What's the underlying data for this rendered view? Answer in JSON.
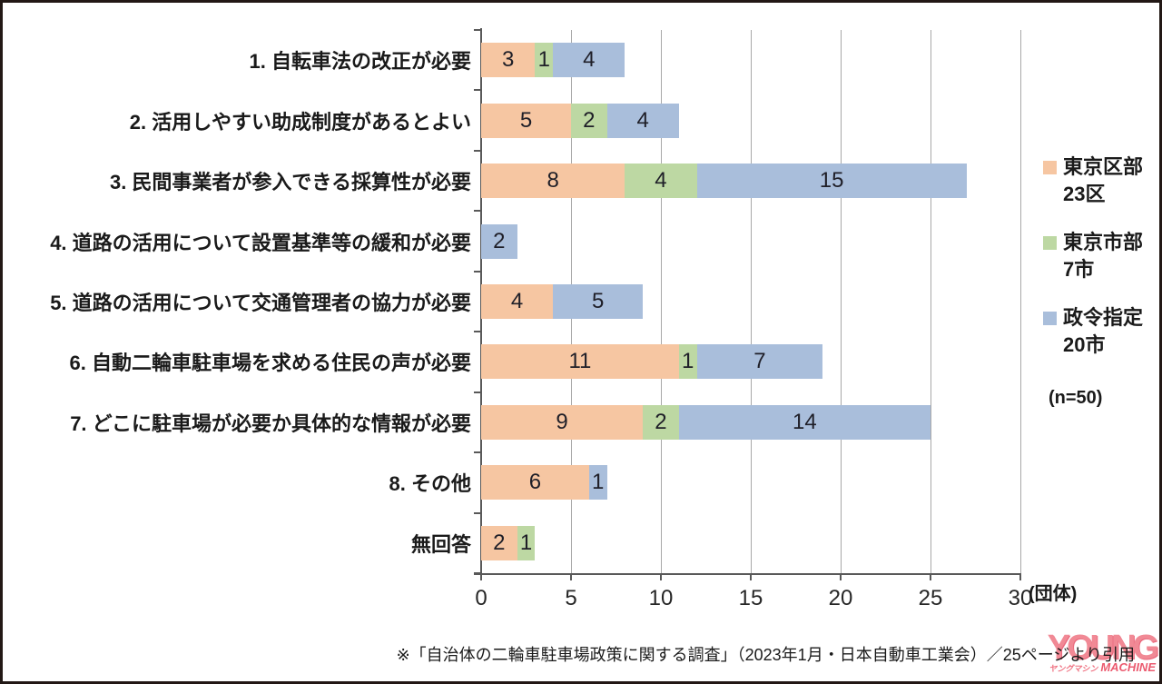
{
  "chart_data": {
    "type": "bar",
    "orientation": "horizontal",
    "stacked": true,
    "title": "",
    "xlabel": "",
    "ylabel": "",
    "categories": [
      "1. 自転車法の改正が必要",
      "2. 活用しやすい助成制度があるとよい",
      "3. 民間事業者が参入できる採算性が必要",
      "4. 道路の活用について設置基準等の緩和が必要",
      "5. 道路の活用について交通管理者の協力が必要",
      "6. 自動二輪車駐車場を求める住民の声が必要",
      "7. どこに駐車場が必要か具体的な情報が必要",
      "8. その他",
      "無回答"
    ],
    "series": [
      {
        "name": "東京区部23区",
        "legend_lines": [
          "東京区部",
          "23区"
        ],
        "color": "#f6c6a2",
        "values": [
          3,
          5,
          8,
          0,
          4,
          11,
          9,
          6,
          2
        ]
      },
      {
        "name": "東京市部7市",
        "legend_lines": [
          "東京市部",
          "7市"
        ],
        "color": "#bdd8a3",
        "values": [
          1,
          2,
          4,
          0,
          0,
          1,
          2,
          0,
          1
        ]
      },
      {
        "name": "政令指定20市",
        "legend_lines": [
          "政令指定",
          "20市"
        ],
        "color": "#a9bedb",
        "values": [
          4,
          4,
          15,
          2,
          5,
          7,
          14,
          1,
          0
        ]
      }
    ],
    "xlim": [
      0,
      30
    ],
    "xticks": [
      0,
      5,
      10,
      15,
      20,
      25,
      30
    ],
    "x_unit_label": "(団体)",
    "sample_note": "(n=50)",
    "legend_position": "right",
    "grid": true
  },
  "footer": {
    "citation": "※「自治体の二輪車駐車場政策に関する調査」（2023年1月・日本自動車工業会）／25ページより引用"
  },
  "watermark": {
    "line1": "YOUNG",
    "line2": "ヤングマシン",
    "line3": "MACHINE",
    "color": "#ec5f74"
  }
}
